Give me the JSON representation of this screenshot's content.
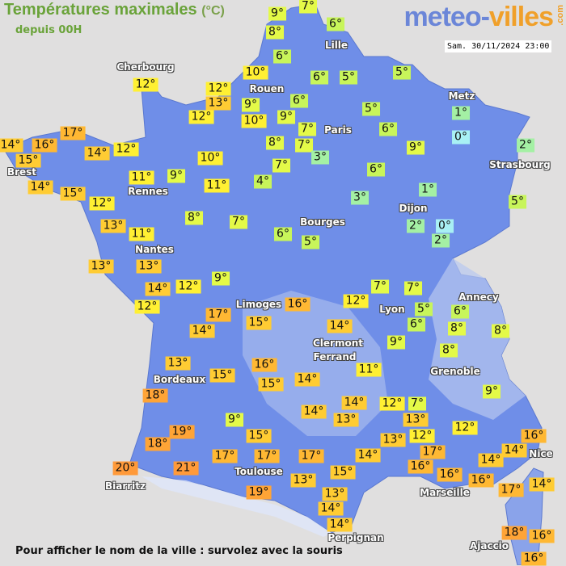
{
  "header": {
    "title": "Températures maximales",
    "unit": "(°C)",
    "subtitle": "depuis 00H",
    "logo_part1": "meteo-",
    "logo_part2": "villes",
    "logo_suffix": ".com",
    "timestamp": "Sam. 30/11/2024 23:00"
  },
  "colors": {
    "land": "#6f8ee8",
    "sea": "#e0dfdf",
    "cold": "#a8f0f4",
    "cool": "#a4f0a4",
    "mild_green": "#c8f55a",
    "lime": "#e4fa48",
    "yellow": "#fff033",
    "light_orange": "#ffcc33",
    "orange": "#ffb833",
    "dark_orange": "#ffa436"
  },
  "cities": [
    "Lille",
    "Rouen",
    "Metz",
    "Paris",
    "Strasbourg",
    "Dijon",
    "Bourges",
    "Cherbourg",
    "Brest",
    "Rennes",
    "Nantes",
    "Limoges",
    "Lyon",
    "Annecy",
    "Clermont",
    "Ferrand",
    "Bordeaux",
    "Grenoble",
    "Nice",
    "Toulouse",
    "Marseille",
    "Biarritz",
    "Perpignan",
    "Ajaccio"
  ],
  "temperatures": [
    9,
    7,
    8,
    6,
    6,
    10,
    12,
    13,
    9,
    10,
    12,
    9,
    6,
    6,
    5,
    5,
    1,
    0,
    5,
    6,
    7,
    7,
    8,
    3,
    7,
    9,
    2,
    6,
    4,
    1,
    3,
    5,
    2,
    0,
    2,
    6,
    5,
    12,
    17,
    14,
    16,
    15,
    14,
    14,
    12,
    11,
    9,
    10,
    11,
    15,
    12,
    8,
    7,
    13,
    11,
    13,
    13,
    9,
    14,
    12,
    12,
    17,
    16,
    15,
    14,
    12,
    7,
    7,
    5,
    6,
    6,
    8,
    8,
    14,
    9,
    8,
    13,
    15,
    16,
    15,
    14,
    11,
    18,
    14,
    14,
    12,
    7,
    13,
    9,
    13,
    12,
    9,
    19,
    18,
    15,
    13,
    12,
    16,
    14,
    17,
    16,
    17,
    17,
    17,
    14,
    14,
    20,
    21,
    15,
    16,
    13,
    16,
    17,
    14,
    19,
    13,
    14,
    14,
    18,
    16,
    16
  ],
  "footer": "Pour afficher le nom de la ville : survolez avec la souris"
}
